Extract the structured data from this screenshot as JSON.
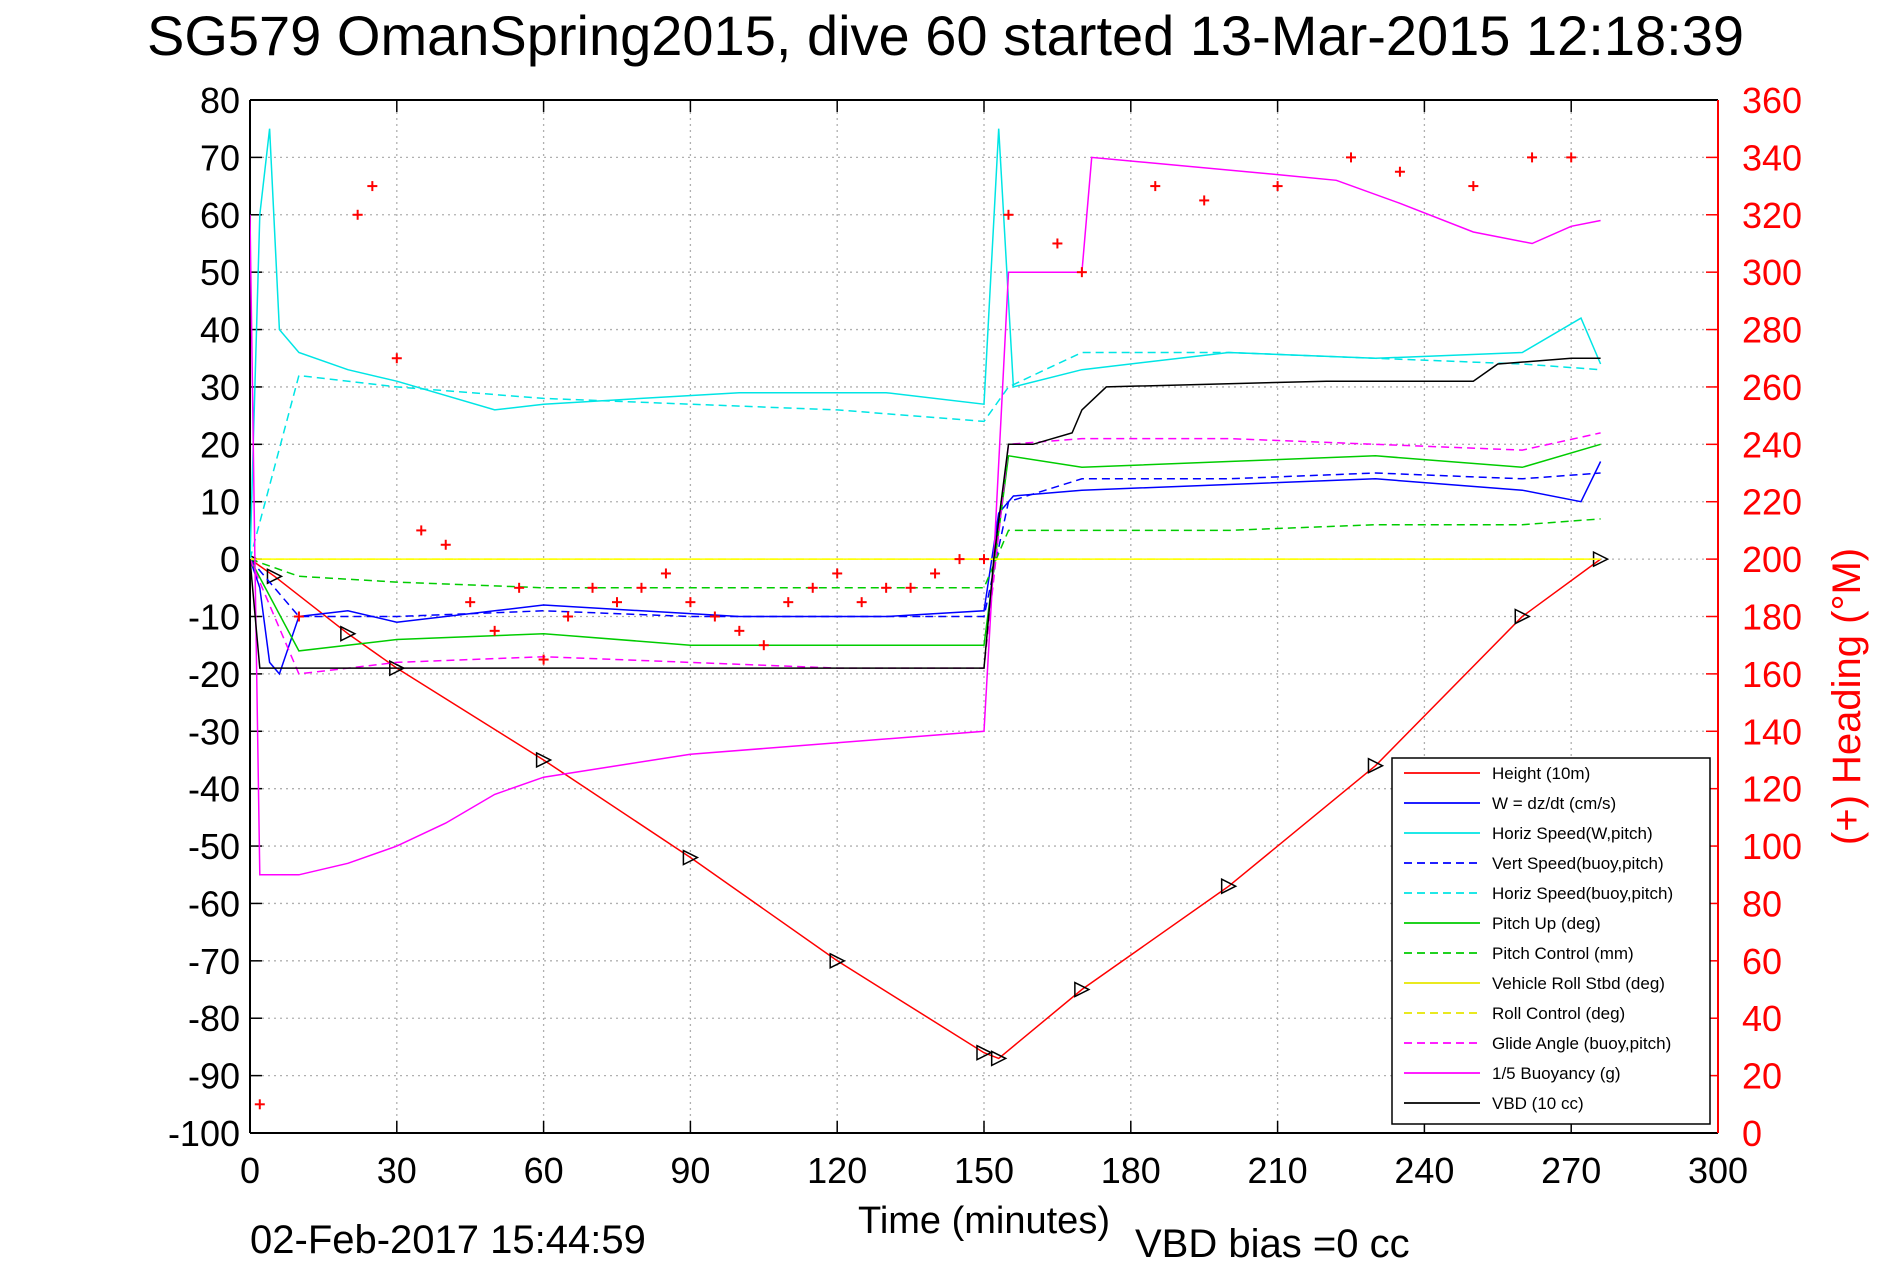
{
  "figure": {
    "title": "SG579 OmanSpring2015, dive 60 started 13-Mar-2015 12:18:39",
    "footer_timestamp": "02-Feb-2017 15:44:59",
    "footer_note": "VBD bias =0 cc"
  },
  "colors": {
    "height": "#ff0000",
    "w": "#0000ff",
    "horiz_speed": "#00e5e5",
    "vert_speed_buoy": "#0000ff",
    "horiz_speed_buoy": "#00e5e5",
    "pitch": "#00cc00",
    "pitch_control": "#00cc00",
    "roll": "#ffff00",
    "roll_control": "#ffff00",
    "glide_angle": "#ff00ff",
    "buoyancy": "#ff00ff",
    "vbd": "#000000",
    "heading": "#ff0000",
    "grid": "#b0b0b0"
  },
  "chart_data": {
    "type": "line",
    "title": "SG579 OmanSpring2015, dive 60 started 13-Mar-2015 12:18:39",
    "xlabel": "Time (minutes)",
    "ylabel": "",
    "y2label": "(+) Heading (°M)",
    "xlim": [
      0,
      300
    ],
    "ylim": [
      -100,
      80
    ],
    "y2lim": [
      0,
      360
    ],
    "grid": true,
    "legend_position": "bottom-right",
    "x_ticks": [
      "0",
      "30",
      "60",
      "90",
      "120",
      "150",
      "180",
      "210",
      "240",
      "270",
      "300"
    ],
    "y_ticks": [
      "80",
      "70",
      "60",
      "50",
      "40",
      "30",
      "20",
      "10",
      "0",
      "-10",
      "-20",
      "-30",
      "-40",
      "-50",
      "-60",
      "-70",
      "-80",
      "-90",
      "-100"
    ],
    "y2_ticks": [
      "360",
      "340",
      "320",
      "300",
      "280",
      "260",
      "240",
      "220",
      "200",
      "180",
      "160",
      "140",
      "120",
      "100",
      "80",
      "60",
      "40",
      "20",
      "0"
    ],
    "legend": [
      "Height (10m)",
      "W = dz/dt (cm/s)",
      "Horiz Speed(W,pitch)",
      "Vert Speed(buoy,pitch)",
      "Horiz Speed(buoy,pitch)",
      "Pitch Up (deg)",
      "Pitch Control (mm)",
      "Vehicle Roll Stbd (deg)",
      "Roll Control (deg)",
      "Glide Angle (buoy,pitch)",
      "1/5 Buoyancy (g)",
      "VBD (10 cc)"
    ],
    "series": [
      {
        "name": "Height (10m)",
        "x": [
          0,
          5,
          20,
          30,
          60,
          90,
          120,
          150,
          153,
          170,
          200,
          230,
          260,
          276
        ],
        "values": [
          0,
          -3,
          -13,
          -19,
          -35,
          -52,
          -70,
          -86,
          -87,
          -75,
          -57,
          -36,
          -10,
          0
        ]
      },
      {
        "name": "W = dz/dt (cm/s)",
        "x": [
          0,
          2,
          4,
          6,
          10,
          20,
          30,
          50,
          60,
          80,
          100,
          130,
          150,
          153,
          156,
          170,
          200,
          230,
          260,
          272,
          276
        ],
        "values": [
          0,
          -5,
          -18,
          -20,
          -10,
          -9,
          -11,
          -9,
          -8,
          -9,
          -10,
          -10,
          -9,
          8,
          11,
          12,
          13,
          14,
          12,
          10,
          17
        ]
      },
      {
        "name": "Horiz Speed(W,pitch)",
        "x": [
          0,
          2,
          4,
          6,
          10,
          20,
          30,
          50,
          60,
          80,
          100,
          130,
          150,
          153,
          156,
          170,
          200,
          230,
          260,
          272,
          276
        ],
        "values": [
          0,
          60,
          75,
          40,
          36,
          33,
          31,
          26,
          27,
          28,
          29,
          29,
          27,
          75,
          30,
          33,
          36,
          35,
          36,
          42,
          34
        ]
      },
      {
        "name": "Vert Speed(buoy,pitch)",
        "x": [
          0,
          10,
          30,
          60,
          90,
          120,
          150,
          155,
          170,
          200,
          230,
          260,
          276
        ],
        "values": [
          0,
          -10,
          -10,
          -9,
          -10,
          -10,
          -10,
          10,
          14,
          14,
          15,
          14,
          15
        ]
      },
      {
        "name": "Horiz Speed(buoy,pitch)",
        "x": [
          0,
          10,
          30,
          60,
          90,
          120,
          150,
          155,
          170,
          200,
          230,
          260,
          276
        ],
        "values": [
          0,
          32,
          30,
          28,
          27,
          26,
          24,
          30,
          36,
          36,
          35,
          34,
          33
        ]
      },
      {
        "name": "Pitch Up (deg)",
        "x": [
          0,
          10,
          30,
          60,
          90,
          120,
          150,
          155,
          170,
          200,
          230,
          260,
          276
        ],
        "values": [
          0,
          -16,
          -14,
          -13,
          -15,
          -15,
          -15,
          18,
          16,
          17,
          18,
          16,
          20
        ]
      },
      {
        "name": "Pitch Control (mm)",
        "x": [
          0,
          10,
          30,
          60,
          90,
          120,
          150,
          155,
          170,
          200,
          230,
          260,
          276
        ],
        "values": [
          0,
          -3,
          -4,
          -5,
          -5,
          -5,
          -5,
          5,
          5,
          5,
          6,
          6,
          7
        ]
      },
      {
        "name": "Vehicle Roll Stbd (deg)",
        "x": [
          0,
          10,
          30,
          60,
          90,
          120,
          150,
          155,
          170,
          200,
          230,
          260,
          276
        ],
        "values": [
          0,
          0,
          0,
          0,
          0,
          0,
          0,
          0,
          0,
          0,
          0,
          0,
          0
        ]
      },
      {
        "name": "Roll Control (deg)",
        "x": [
          0,
          10,
          30,
          60,
          90,
          120,
          150,
          155,
          170,
          200,
          230,
          260,
          276
        ],
        "values": [
          0,
          0,
          0,
          0,
          0,
          0,
          0,
          0,
          0,
          0,
          0,
          0,
          0
        ]
      },
      {
        "name": "Glide Angle (buoy,pitch)",
        "x": [
          0,
          10,
          30,
          60,
          90,
          120,
          150,
          155,
          170,
          200,
          230,
          260,
          276
        ],
        "values": [
          0,
          -20,
          -18,
          -17,
          -18,
          -19,
          -19,
          20,
          21,
          21,
          20,
          19,
          22
        ]
      },
      {
        "name": "1/5 Buoyancy (g)",
        "x": [
          0,
          1,
          2,
          10,
          20,
          30,
          40,
          50,
          60,
          90,
          120,
          150,
          152,
          155,
          170,
          172,
          210,
          222,
          235,
          250,
          262,
          270,
          276
        ],
        "values": [
          60,
          0,
          -55,
          -55,
          -53,
          -50,
          -46,
          -41,
          -38,
          -34,
          -32,
          -30,
          0,
          50,
          50,
          70,
          67,
          66,
          62,
          57,
          55,
          58,
          59
        ]
      },
      {
        "name": "VBD (10 cc)",
        "x": [
          0,
          2,
          150,
          152,
          155,
          160,
          168,
          170,
          175,
          220,
          235,
          250,
          255,
          270,
          276
        ],
        "values": [
          0,
          -19,
          -19,
          0,
          20,
          20,
          22,
          26,
          30,
          31,
          31,
          31,
          34,
          35,
          35
        ]
      },
      {
        "name": "(+) Heading (°M)",
        "axis": "right",
        "x": [
          2,
          10,
          22,
          25,
          30,
          35,
          40,
          45,
          50,
          55,
          60,
          65,
          70,
          75,
          80,
          85,
          90,
          95,
          100,
          105,
          110,
          115,
          120,
          125,
          130,
          135,
          140,
          145,
          150,
          155,
          165,
          170,
          185,
          195,
          210,
          225,
          235,
          250,
          262,
          270
        ],
        "values": [
          10,
          180,
          320,
          330,
          270,
          210,
          205,
          185,
          175,
          190,
          165,
          180,
          190,
          185,
          190,
          195,
          185,
          180,
          175,
          170,
          185,
          190,
          195,
          185,
          190,
          190,
          195,
          200,
          200,
          320,
          310,
          300,
          330,
          325,
          330,
          340,
          335,
          330,
          340,
          340
        ]
      }
    ]
  }
}
